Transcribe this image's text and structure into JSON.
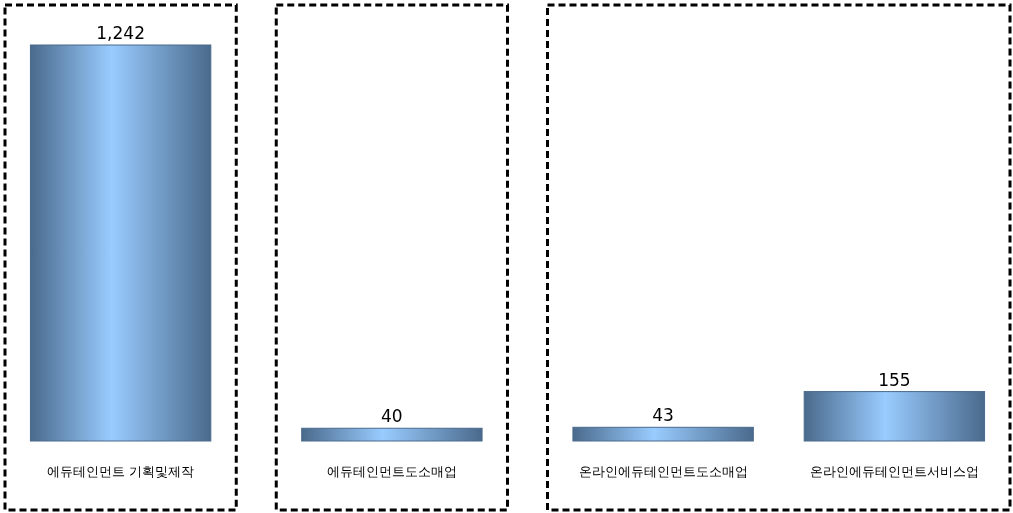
{
  "chart_data": {
    "type": "bar",
    "categories": [
      "에듀테인먼트 기획및제작",
      "에듀테인먼트도소매업",
      "온라인에듀테인먼트도소매업",
      "온라인에듀테인먼트서비스업"
    ],
    "values": [
      1242,
      40,
      43,
      155
    ],
    "value_labels": [
      "1,242",
      "40",
      "43",
      "155"
    ],
    "color": "#4a6a8c"
  }
}
